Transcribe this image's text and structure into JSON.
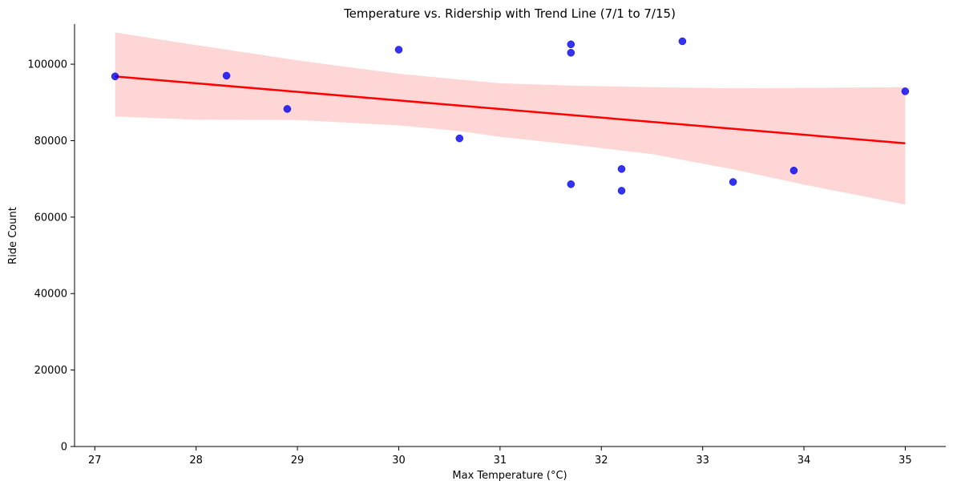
{
  "chart_data": {
    "type": "scatter",
    "title": "Temperature vs. Ridership with Trend Line (7/1 to 7/15)",
    "xlabel": "Max Temperature (°C)",
    "ylabel": "Ride Count",
    "xlim": [
      26.8,
      35.4
    ],
    "ylim": [
      0,
      110500
    ],
    "xticks": [
      27,
      28,
      29,
      30,
      31,
      32,
      33,
      34,
      35
    ],
    "yticks": [
      0,
      20000,
      40000,
      60000,
      80000,
      100000
    ],
    "grid": false,
    "points": [
      {
        "x": 27.2,
        "y": 96800
      },
      {
        "x": 28.3,
        "y": 97000
      },
      {
        "x": 28.9,
        "y": 88300
      },
      {
        "x": 30.0,
        "y": 103800
      },
      {
        "x": 30.6,
        "y": 80600
      },
      {
        "x": 31.7,
        "y": 105200
      },
      {
        "x": 31.7,
        "y": 103000
      },
      {
        "x": 31.7,
        "y": 68600
      },
      {
        "x": 32.2,
        "y": 72600
      },
      {
        "x": 32.2,
        "y": 66900
      },
      {
        "x": 32.8,
        "y": 106000
      },
      {
        "x": 33.3,
        "y": 69200
      },
      {
        "x": 33.9,
        "y": 72200
      },
      {
        "x": 35.0,
        "y": 92900
      }
    ],
    "trend_line": {
      "x": [
        27.2,
        35.0
      ],
      "y": [
        96800,
        79300
      ]
    },
    "confidence_band": [
      {
        "x": 27.2,
        "lower": 86300,
        "upper": 108300
      },
      {
        "x": 28.0,
        "lower": 85500,
        "upper": 105000
      },
      {
        "x": 29.0,
        "lower": 85400,
        "upper": 101000
      },
      {
        "x": 30.0,
        "lower": 84000,
        "upper": 97500
      },
      {
        "x": 30.6,
        "lower": 82500,
        "upper": 96000
      },
      {
        "x": 31.0,
        "lower": 81000,
        "upper": 95000
      },
      {
        "x": 31.7,
        "lower": 79000,
        "upper": 94400
      },
      {
        "x": 32.5,
        "lower": 76500,
        "upper": 94000
      },
      {
        "x": 33.3,
        "lower": 72500,
        "upper": 93700
      },
      {
        "x": 34.0,
        "lower": 68500,
        "upper": 93800
      },
      {
        "x": 35.0,
        "lower": 63300,
        "upper": 94000
      }
    ],
    "colors": {
      "points": "#0000ee",
      "trend_line": "#ff0000",
      "band": "#ffd6d6",
      "axis": "#000000"
    }
  }
}
